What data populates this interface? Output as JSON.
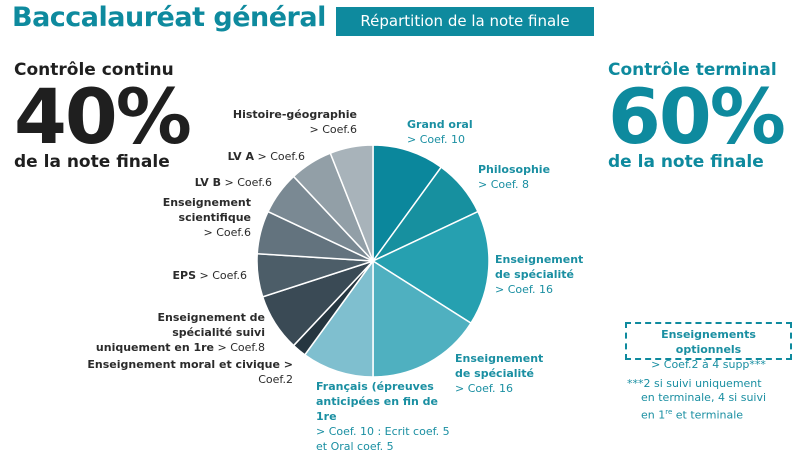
{
  "header": {
    "title": "Baccalauréat général",
    "subtitle": "Répartition de la note finale"
  },
  "left": {
    "heading": "Contrôle continu",
    "percent": "40%",
    "caption": "de la note finale"
  },
  "right": {
    "heading": "Contrôle terminal",
    "percent": "60%",
    "caption": "de la note finale"
  },
  "optional": {
    "title": "Enseignements optionnels",
    "value": "> Coef.2 à 4 supp***",
    "note_prefix": "***2 si suivi  uniquement",
    "note_line2": "en terminale, 4 si suivi",
    "note_line3_a": "en 1",
    "note_line3_sup": "re",
    "note_line3_b": "et terminale"
  },
  "chart_data": {
    "type": "pie",
    "start_angle_deg": 0,
    "direction": "clockwise",
    "slices": [
      {
        "id": "grand-oral",
        "name": "Grand oral",
        "coef_text": "> Coef. 10",
        "value": 10,
        "color": "#0b879c",
        "group": "terminal"
      },
      {
        "id": "philosophie",
        "name": "Philosophie",
        "coef_text": "> Coef. 8",
        "value": 8,
        "color": "#17909f",
        "group": "terminal"
      },
      {
        "id": "specialite-1",
        "name": "Enseignement de spécialité",
        "coef_text": "> Coef. 16",
        "value": 16,
        "color": "#26a0b0",
        "group": "terminal"
      },
      {
        "id": "specialite-2",
        "name": "Enseignement de spécialité",
        "coef_text": "> Coef. 16",
        "value": 16,
        "color": "#4fb0c0",
        "group": "terminal"
      },
      {
        "id": "francais",
        "name": "Français (épreuves anticipées en fin de 1re",
        "coef_text": "> Coef. 10 : Ecrit coef. 5 et Oral coef. 5",
        "value": 10,
        "color": "#7fbfcf",
        "group": "terminal"
      },
      {
        "id": "moral-civique",
        "name": "Enseignement moral et civique >",
        "coef_text": "Coef.2",
        "value": 2,
        "color": "#263640",
        "group": "continu"
      },
      {
        "id": "specialite-1re",
        "name": "Enseignement de spécialité suivi uniquement en 1re",
        "coef_text": "> Coef.8",
        "value": 8,
        "color": "#3a4a55",
        "group": "continu"
      },
      {
        "id": "eps",
        "name": "EPS",
        "coef_text": "> Coef.6",
        "value": 6,
        "color": "#4c5d68",
        "group": "continu"
      },
      {
        "id": "scientifique",
        "name": "Enseignement scientifique",
        "coef_text": "> Coef.6",
        "value": 6,
        "color": "#63737e",
        "group": "continu"
      },
      {
        "id": "lvb",
        "name": "LV B",
        "coef_text": "> Coef.6",
        "value": 6,
        "color": "#7a8993",
        "group": "continu"
      },
      {
        "id": "lva",
        "name": "LV A",
        "coef_text": "> Coef.6",
        "value": 6,
        "color": "#929fa7",
        "group": "continu"
      },
      {
        "id": "histoire-geo",
        "name": "Histoire-géographie",
        "coef_text": "> Coef.6",
        "value": 6,
        "color": "#a8b3ba",
        "group": "continu"
      }
    ]
  }
}
